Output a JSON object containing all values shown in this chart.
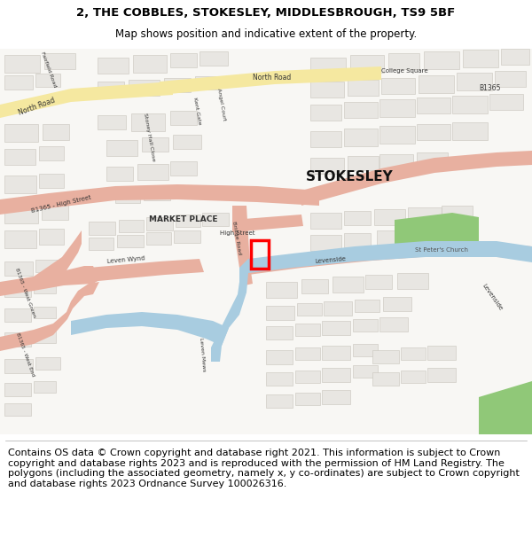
{
  "title_line1": "2, THE COBBLES, STOKESLEY, MIDDLESBROUGH, TS9 5BF",
  "title_line2": "Map shows position and indicative extent of the property.",
  "footer_text": "Contains OS data © Crown copyright and database right 2021. This information is subject to Crown copyright and database rights 2023 and is reproduced with the permission of HM Land Registry. The polygons (including the associated geometry, namely x, y co-ordinates) are subject to Crown copyright and database rights 2023 Ordnance Survey 100026316.",
  "title_fontsize": 9.5,
  "footer_fontsize": 8.0,
  "map_bg_color": "#f5f3f0",
  "fig_bg_color": "#ffffff",
  "road_yellow": "#f5e8a0",
  "road_salmon": "#e8b0a0",
  "water_color": "#a8cce0",
  "green_color": "#90c878",
  "building_color": "#e8e6e2",
  "building_outline": "#c8c4bc",
  "label_color": "#333333"
}
